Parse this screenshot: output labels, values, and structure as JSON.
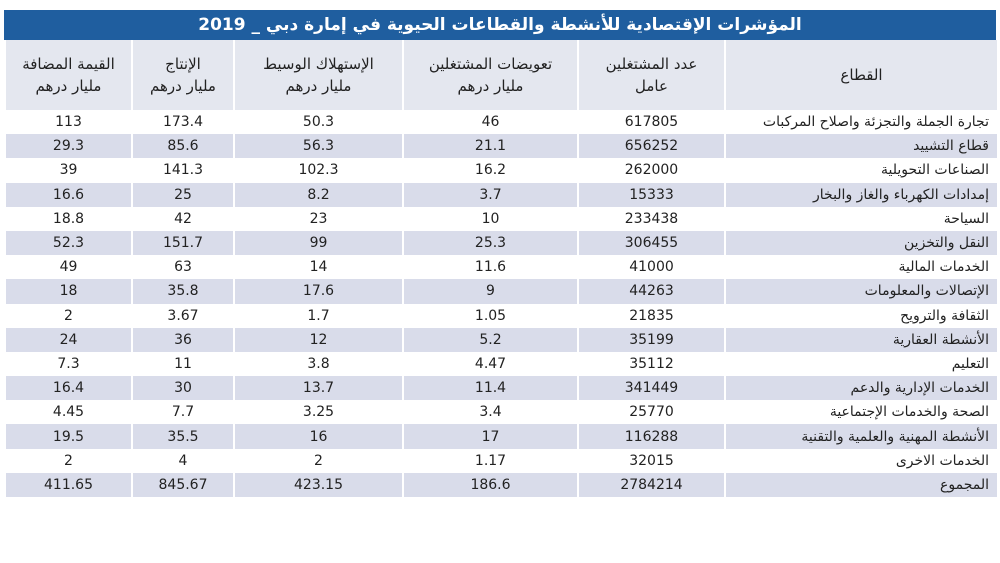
{
  "title": "المؤشرات الإقتصادية للأنشطة والقطاعات الحيوية في إمارة دبي _ 2019",
  "headers": [
    {
      "line1": "القطاع",
      "line2": ""
    },
    {
      "line1": "عدد المشتغلين",
      "line2": "عامل"
    },
    {
      "line1": "تعويضات المشتغلين",
      "line2": "مليار درهم"
    },
    {
      "line1": "الإستهلاك الوسيط",
      "line2": "مليار درهم"
    },
    {
      "line1": "الإنتاج",
      "line2": "مليار درهم"
    },
    {
      "line1": "القيمة المضافة",
      "line2": "مليار درهم"
    }
  ],
  "rows": [
    [
      "تجارة الجملة والتجزئة واصلاح المركبات",
      "617805",
      "46",
      "50.3",
      "173.4",
      "113"
    ],
    [
      "قطاع التشييد",
      "656252",
      "21.1",
      "56.3",
      "85.6",
      "29.3"
    ],
    [
      "الصناعات التحويلية",
      "262000",
      "16.2",
      "102.3",
      "141.3",
      "39"
    ],
    [
      "إمدادات الكهرباء والغاز والبخار",
      "15333",
      "3.7",
      "8.2",
      "25",
      "16.6"
    ],
    [
      "السياحة",
      "233438",
      "10",
      "23",
      "42",
      "18.8"
    ],
    [
      "النقل والتخزين",
      "306455",
      "25.3",
      "99",
      "151.7",
      "52.3"
    ],
    [
      "الخدمات المالية",
      "41000",
      "11.6",
      "14",
      "63",
      "49"
    ],
    [
      "الإتصالات والمعلومات",
      "44263",
      "9",
      "17.6",
      "35.8",
      "18"
    ],
    [
      "الثقافة والترويح",
      "21835",
      "1.05",
      "1.7",
      "3.67",
      "2"
    ],
    [
      "الأنشطة العقارية",
      "35199",
      "5.2",
      "12",
      "36",
      "24"
    ],
    [
      "التعليم",
      "35112",
      "4.47",
      "3.8",
      "11",
      "7.3"
    ],
    [
      "الخدمات الإدارية والدعم",
      "341449",
      "11.4",
      "13.7",
      "30",
      "16.4"
    ],
    [
      "الصحة والخدمات الإجتماعية",
      "25770",
      "3.4",
      "3.25",
      "7.7",
      "4.45"
    ],
    [
      "الأنشطة المهنية والعلمية والتقنية",
      "116288",
      "17",
      "16",
      "35.5",
      "19.5"
    ],
    [
      "الخدمات الاخرى",
      "32015",
      "1.17",
      "2",
      "4",
      "2"
    ]
  ],
  "total": [
    "المجموع",
    "2784214",
    "186.6",
    "423.15",
    "845.67",
    "411.65"
  ]
}
